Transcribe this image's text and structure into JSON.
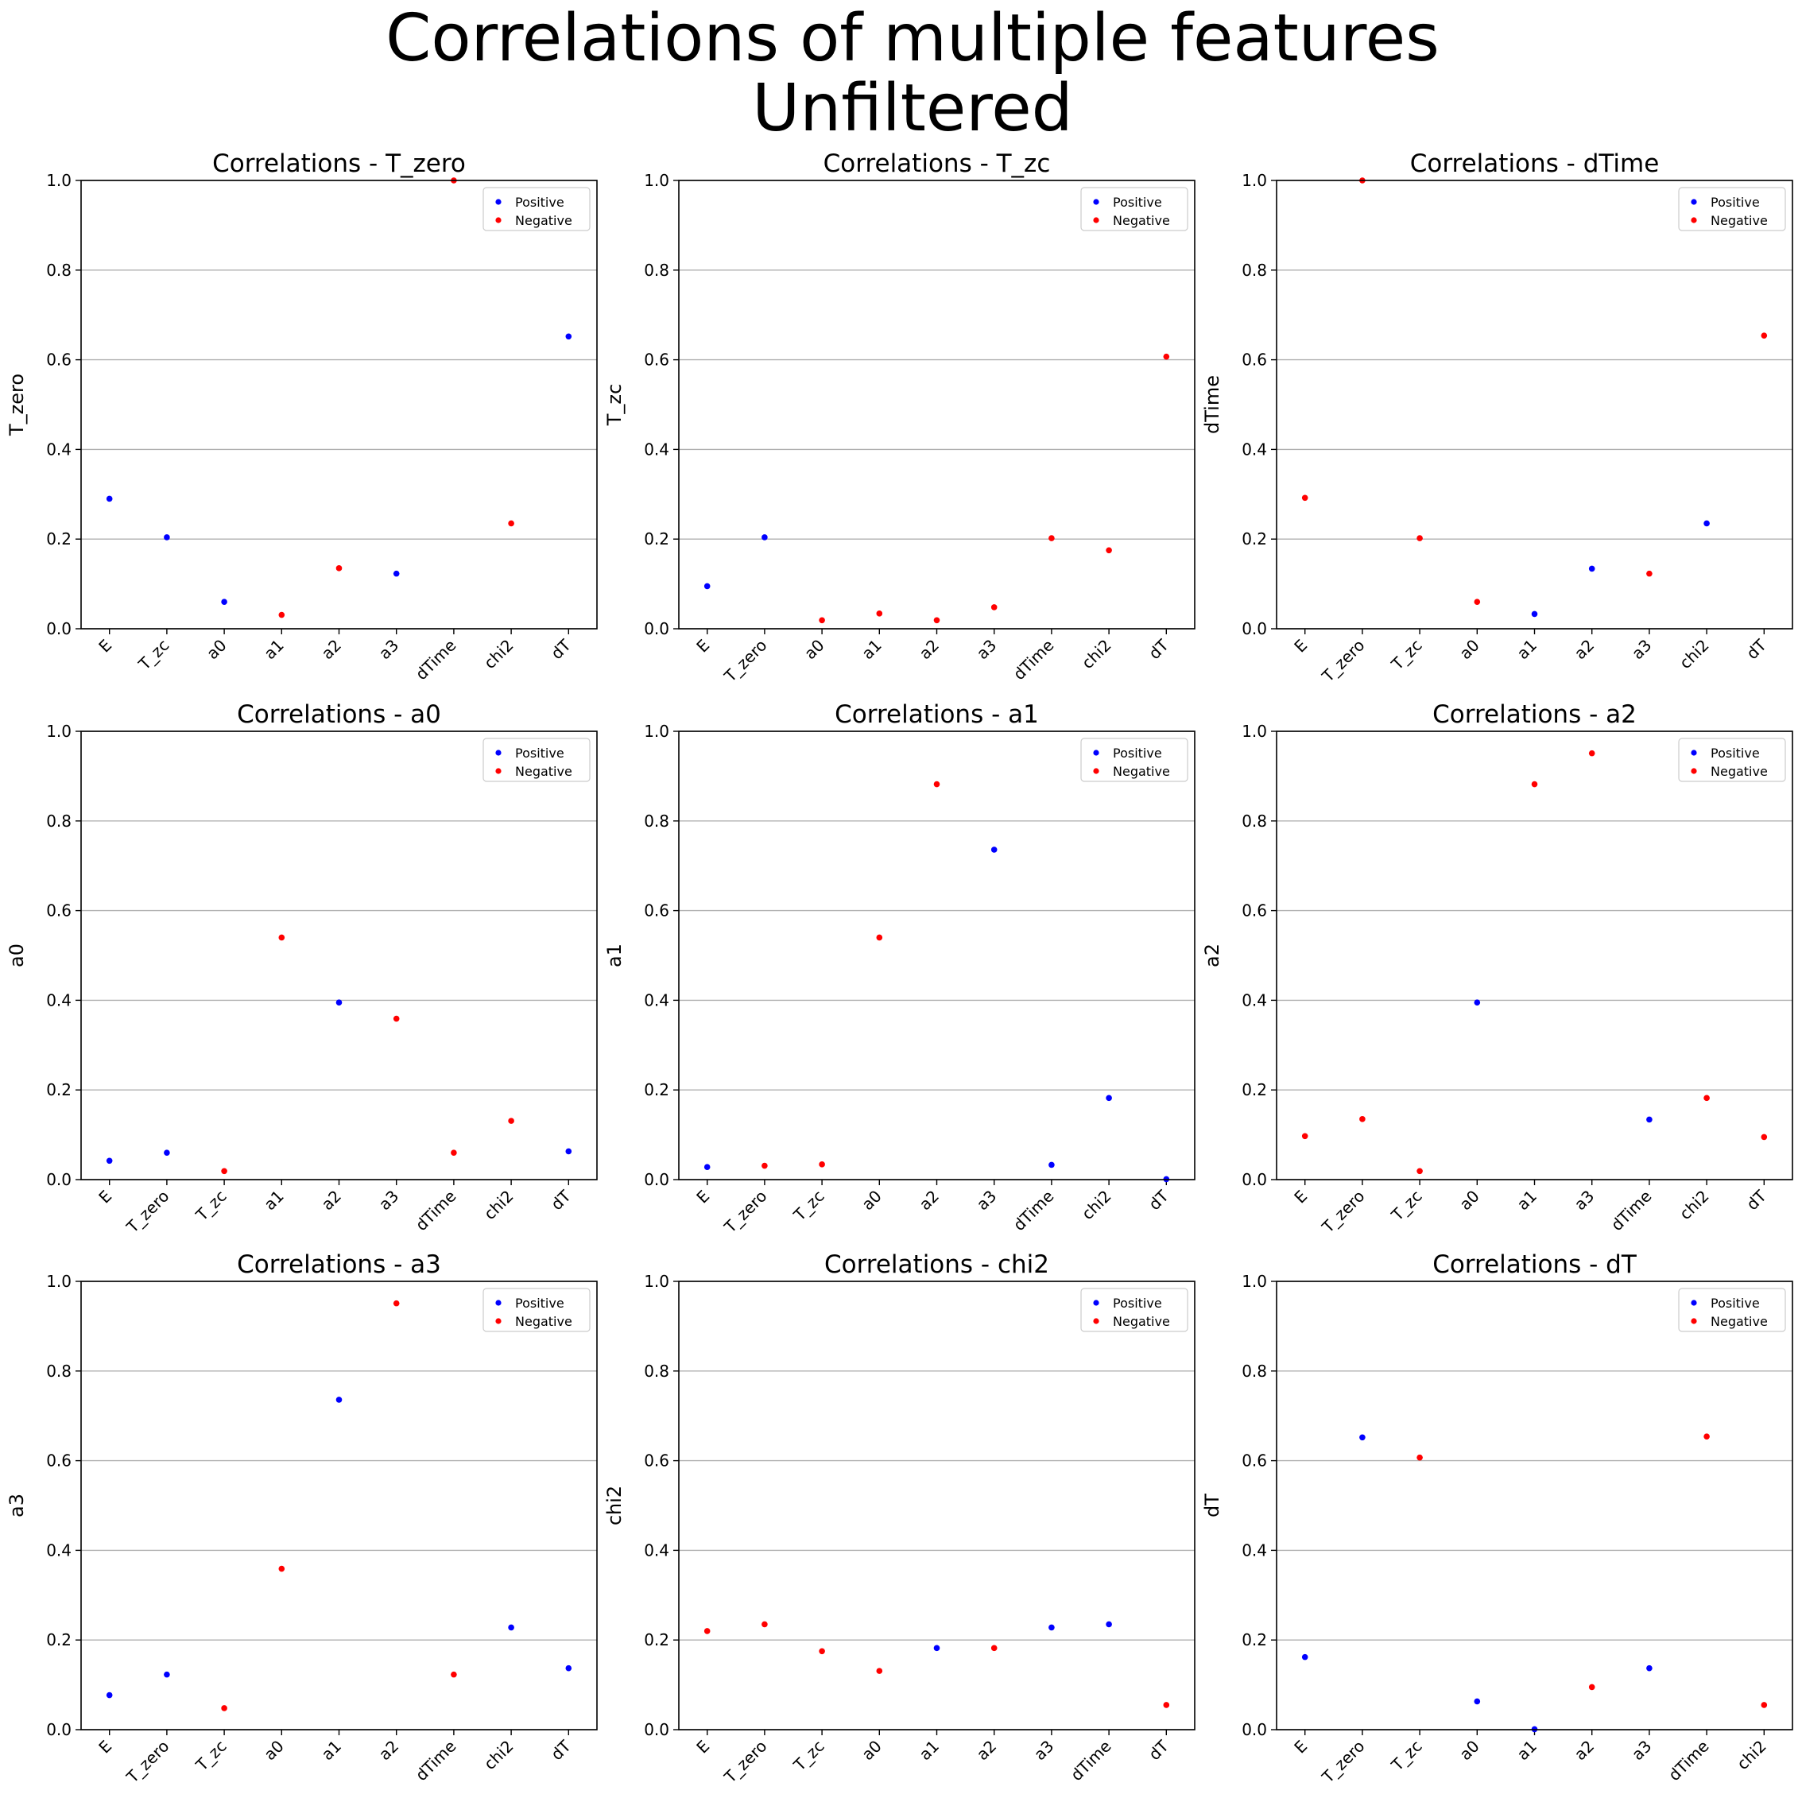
{
  "figure": {
    "suptitle": [
      "Correlations of multiple features",
      "Unfiltered"
    ]
  },
  "legend": {
    "location": "upper right",
    "entries": [
      {
        "label": "Positive",
        "color": "#0000ff"
      },
      {
        "label": "Negative",
        "color": "#ff0000"
      }
    ]
  },
  "colors": {
    "positive": "#0000ff",
    "negative": "#ff0000",
    "grid": "#b0b0b0"
  },
  "chart_data": [
    {
      "type": "scatter",
      "title": "Correlations - T_zero",
      "xlabel": "",
      "ylabel": "T_zero",
      "categories": [
        "E",
        "T_zc",
        "a0",
        "a1",
        "a2",
        "a3",
        "dTime",
        "chi2",
        "dT"
      ],
      "values": [
        0.29,
        0.204,
        0.06,
        0.031,
        0.135,
        0.123,
        1.0,
        0.235,
        0.652
      ],
      "signs": [
        "positive",
        "positive",
        "positive",
        "negative",
        "negative",
        "positive",
        "negative",
        "negative",
        "positive"
      ],
      "ylim": [
        0,
        1
      ],
      "yticks": [
        "0.0",
        "0.2",
        "0.4",
        "0.6",
        "0.8",
        "1.0"
      ],
      "grid": "horizontal",
      "legend": "top-right"
    },
    {
      "type": "scatter",
      "title": "Correlations - T_zc",
      "xlabel": "",
      "ylabel": "T_zc",
      "categories": [
        "E",
        "T_zero",
        "a0",
        "a1",
        "a2",
        "a3",
        "dTime",
        "chi2",
        "dT"
      ],
      "values": [
        0.095,
        0.204,
        0.019,
        0.034,
        0.019,
        0.048,
        0.202,
        0.175,
        0.607
      ],
      "signs": [
        "positive",
        "positive",
        "negative",
        "negative",
        "negative",
        "negative",
        "negative",
        "negative",
        "negative"
      ],
      "ylim": [
        0,
        1
      ],
      "yticks": [
        "0.0",
        "0.2",
        "0.4",
        "0.6",
        "0.8",
        "1.0"
      ],
      "grid": "horizontal",
      "legend": "top-right"
    },
    {
      "type": "scatter",
      "title": "Correlations - dTime",
      "xlabel": "",
      "ylabel": "dTime",
      "categories": [
        "E",
        "T_zero",
        "T_zc",
        "a0",
        "a1",
        "a2",
        "a3",
        "chi2",
        "dT"
      ],
      "values": [
        0.292,
        1.0,
        0.202,
        0.06,
        0.033,
        0.134,
        0.123,
        0.235,
        0.654
      ],
      "signs": [
        "negative",
        "negative",
        "negative",
        "negative",
        "positive",
        "positive",
        "negative",
        "positive",
        "negative"
      ],
      "ylim": [
        0,
        1
      ],
      "yticks": [
        "0.0",
        "0.2",
        "0.4",
        "0.6",
        "0.8",
        "1.0"
      ],
      "grid": "horizontal",
      "legend": "top-right"
    },
    {
      "type": "scatter",
      "title": "Correlations - a0",
      "xlabel": "",
      "ylabel": "a0",
      "categories": [
        "E",
        "T_zero",
        "T_zc",
        "a1",
        "a2",
        "a3",
        "dTime",
        "chi2",
        "dT"
      ],
      "values": [
        0.042,
        0.06,
        0.019,
        0.54,
        0.395,
        0.359,
        0.06,
        0.131,
        0.063
      ],
      "signs": [
        "positive",
        "positive",
        "negative",
        "negative",
        "positive",
        "negative",
        "negative",
        "negative",
        "positive"
      ],
      "ylim": [
        0,
        1
      ],
      "yticks": [
        "0.0",
        "0.2",
        "0.4",
        "0.6",
        "0.8",
        "1.0"
      ],
      "grid": "horizontal",
      "legend": "top-right"
    },
    {
      "type": "scatter",
      "title": "Correlations - a1",
      "xlabel": "",
      "ylabel": "a1",
      "categories": [
        "E",
        "T_zero",
        "T_zc",
        "a0",
        "a2",
        "a3",
        "dTime",
        "chi2",
        "dT"
      ],
      "values": [
        0.028,
        0.031,
        0.034,
        0.54,
        0.882,
        0.736,
        0.033,
        0.182,
        0.001
      ],
      "signs": [
        "positive",
        "negative",
        "negative",
        "negative",
        "negative",
        "positive",
        "positive",
        "positive",
        "positive"
      ],
      "ylim": [
        0,
        1
      ],
      "yticks": [
        "0.0",
        "0.2",
        "0.4",
        "0.6",
        "0.8",
        "1.0"
      ],
      "grid": "horizontal",
      "legend": "top-right"
    },
    {
      "type": "scatter",
      "title": "Correlations - a2",
      "xlabel": "",
      "ylabel": "a2",
      "categories": [
        "E",
        "T_zero",
        "T_zc",
        "a0",
        "a1",
        "a3",
        "dTime",
        "chi2",
        "dT"
      ],
      "values": [
        0.097,
        0.135,
        0.019,
        0.395,
        0.882,
        0.951,
        0.134,
        0.182,
        0.095
      ],
      "signs": [
        "negative",
        "negative",
        "negative",
        "positive",
        "negative",
        "negative",
        "positive",
        "negative",
        "negative"
      ],
      "ylim": [
        0,
        1
      ],
      "yticks": [
        "0.0",
        "0.2",
        "0.4",
        "0.6",
        "0.8",
        "1.0"
      ],
      "grid": "horizontal",
      "legend": "top-right"
    },
    {
      "type": "scatter",
      "title": "Correlations - a3",
      "xlabel": "",
      "ylabel": "a3",
      "categories": [
        "E",
        "T_zero",
        "T_zc",
        "a0",
        "a1",
        "a2",
        "dTime",
        "chi2",
        "dT"
      ],
      "values": [
        0.077,
        0.123,
        0.048,
        0.359,
        0.736,
        0.951,
        0.123,
        0.228,
        0.137
      ],
      "signs": [
        "positive",
        "positive",
        "negative",
        "negative",
        "positive",
        "negative",
        "negative",
        "positive",
        "positive"
      ],
      "ylim": [
        0,
        1
      ],
      "yticks": [
        "0.0",
        "0.2",
        "0.4",
        "0.6",
        "0.8",
        "1.0"
      ],
      "grid": "horizontal",
      "legend": "top-right"
    },
    {
      "type": "scatter",
      "title": "Correlations - chi2",
      "xlabel": "",
      "ylabel": "chi2",
      "categories": [
        "E",
        "T_zero",
        "T_zc",
        "a0",
        "a1",
        "a2",
        "a3",
        "dTime",
        "dT"
      ],
      "values": [
        0.22,
        0.235,
        0.175,
        0.131,
        0.182,
        0.182,
        0.228,
        0.235,
        0.055
      ],
      "signs": [
        "negative",
        "negative",
        "negative",
        "negative",
        "positive",
        "negative",
        "positive",
        "positive",
        "negative"
      ],
      "ylim": [
        0,
        1
      ],
      "yticks": [
        "0.0",
        "0.2",
        "0.4",
        "0.6",
        "0.8",
        "1.0"
      ],
      "grid": "horizontal",
      "legend": "top-right"
    },
    {
      "type": "scatter",
      "title": "Correlations - dT",
      "xlabel": "",
      "ylabel": "dT",
      "categories": [
        "E",
        "T_zero",
        "T_zc",
        "a0",
        "a1",
        "a2",
        "a3",
        "dTime",
        "chi2"
      ],
      "values": [
        0.162,
        0.652,
        0.607,
        0.063,
        0.001,
        0.095,
        0.137,
        0.654,
        0.055
      ],
      "signs": [
        "positive",
        "positive",
        "negative",
        "positive",
        "positive",
        "negative",
        "positive",
        "negative",
        "negative"
      ],
      "ylim": [
        0,
        1
      ],
      "yticks": [
        "0.0",
        "0.2",
        "0.4",
        "0.6",
        "0.8",
        "1.0"
      ],
      "grid": "horizontal",
      "legend": "top-right"
    }
  ]
}
